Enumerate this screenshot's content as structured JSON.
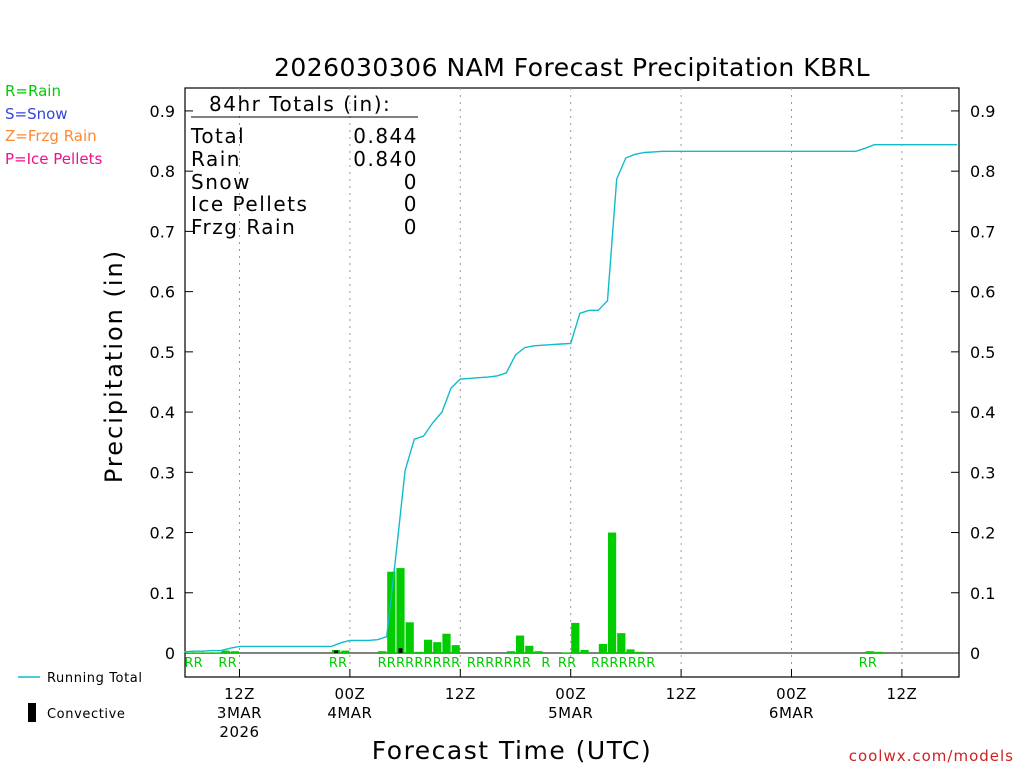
{
  "colors": {
    "rain": "#00cc00",
    "snow": "#3344dd",
    "frzg_rain": "#ff8833",
    "ice_pellets": "#ee1188",
    "running_total": "#11bbcc",
    "convective": "#000000",
    "credit": "#cc2222"
  },
  "precip_legend": {
    "rain": "R=Rain",
    "snow": "S=Snow",
    "frzg_rain": "Z=Frzg Rain",
    "ice_pellets": "P=Ice Pellets"
  },
  "series_legend": {
    "running_total": "Running Total",
    "convective": "Convective"
  },
  "totals_box": {
    "header": "84hr Totals (in):",
    "rows": [
      {
        "label": "Total",
        "value": "0.844"
      },
      {
        "label": "Rain",
        "value": "0.840"
      },
      {
        "label": "Snow",
        "value": "0"
      },
      {
        "label": "Ice Pellets",
        "value": "0"
      },
      {
        "label": "Frzg Rain",
        "value": "0"
      }
    ]
  },
  "credit": "coolwx.com/models",
  "chart_data": {
    "type": "bar",
    "title": "2026030306 NAM Forecast Precipitation KBRL",
    "xlabel": "Forecast Time (UTC)",
    "ylabel": "Precipitation (in)",
    "ylim": [
      0,
      0.95
    ],
    "y_ticks": [
      0,
      0.1,
      0.2,
      0.3,
      0.4,
      0.5,
      0.6,
      0.7,
      0.8,
      0.9
    ],
    "y_tick_labels": [
      "0",
      "0.1",
      "0.2",
      "0.3",
      "0.4",
      "0.5",
      "0.6",
      "0.7",
      "0.8",
      "0.9"
    ],
    "x_units": "forecast hour",
    "xlim": [
      -0.5,
      84
    ],
    "x_ticks": [
      {
        "hour": 6,
        "lines": [
          "12Z",
          "3MAR",
          "2026"
        ]
      },
      {
        "hour": 18,
        "lines": [
          "00Z",
          "4MAR"
        ]
      },
      {
        "hour": 30,
        "lines": [
          "12Z"
        ]
      },
      {
        "hour": 42,
        "lines": [
          "00Z",
          "5MAR"
        ]
      },
      {
        "hour": 54,
        "lines": [
          "12Z"
        ]
      },
      {
        "hour": 66,
        "lines": [
          "00Z",
          "6MAR"
        ]
      },
      {
        "hour": 78,
        "lines": [
          "12Z"
        ]
      }
    ],
    "series": [
      {
        "name": "Hourly precipitation",
        "kind": "bar",
        "x": [
          1,
          2,
          3,
          4,
          5,
          6,
          7,
          8,
          9,
          10,
          11,
          12,
          13,
          14,
          15,
          16,
          17,
          18,
          19,
          20,
          21,
          22,
          23,
          24,
          25,
          26,
          27,
          28,
          29,
          30,
          31,
          32,
          33,
          34,
          35,
          36,
          37,
          38,
          39,
          40,
          41,
          42,
          43,
          44,
          45,
          46,
          47,
          48,
          49,
          50,
          51,
          52,
          53,
          54,
          55,
          56,
          57,
          58,
          59,
          60,
          61,
          62,
          63,
          64,
          65,
          66,
          67,
          68,
          69,
          70,
          71,
          72,
          73,
          74,
          75,
          76,
          77,
          78,
          79,
          80,
          81,
          82,
          83,
          84
        ],
        "values": [
          0.001,
          0.001,
          0.001,
          0.001,
          0.004,
          0.003,
          0,
          0,
          0,
          0,
          0,
          0,
          0,
          0,
          0,
          0,
          0.005,
          0.004,
          0,
          0,
          0,
          0.003,
          0.135,
          0.141,
          0.051,
          0.002,
          0.022,
          0.018,
          0.032,
          0.013,
          0,
          0,
          0,
          0,
          0,
          0.003,
          0.029,
          0.012,
          0.003,
          0,
          0,
          0.001,
          0.05,
          0.005,
          0,
          0.015,
          0.2,
          0.033,
          0.006,
          0.002,
          0,
          0,
          0,
          0,
          0,
          0,
          0,
          0,
          0,
          0,
          0,
          0,
          0,
          0,
          0,
          0,
          0,
          0,
          0,
          0,
          0,
          0,
          0,
          0,
          0.003,
          0.002,
          0,
          0,
          0,
          0,
          0,
          0,
          0,
          0
        ]
      },
      {
        "name": "Convective",
        "kind": "bar",
        "x": [
          17,
          24
        ],
        "values": [
          0.004,
          0.008
        ]
      },
      {
        "name": "Running Total",
        "kind": "line",
        "x": [
          0,
          1,
          2,
          3,
          4,
          5,
          6,
          7,
          8,
          9,
          10,
          11,
          12,
          13,
          14,
          15,
          16,
          17,
          18,
          19,
          20,
          21,
          22,
          23,
          24,
          25,
          26,
          27,
          28,
          29,
          30,
          31,
          32,
          33,
          34,
          35,
          36,
          37,
          38,
          39,
          40,
          41,
          42,
          43,
          44,
          45,
          46,
          47,
          48,
          49,
          50,
          51,
          52,
          53,
          54,
          55,
          56,
          57,
          58,
          59,
          60,
          61,
          62,
          63,
          64,
          65,
          66,
          67,
          68,
          69,
          70,
          71,
          72,
          73,
          74,
          75,
          76,
          77,
          78,
          79,
          80,
          81,
          82,
          83,
          84
        ],
        "values": [
          0.002,
          0.003,
          0.003,
          0.004,
          0.004,
          0.008,
          0.011,
          0.011,
          0.011,
          0.011,
          0.011,
          0.011,
          0.011,
          0.011,
          0.011,
          0.011,
          0.011,
          0.017,
          0.021,
          0.021,
          0.021,
          0.022,
          0.027,
          0.162,
          0.303,
          0.355,
          0.36,
          0.382,
          0.4,
          0.44,
          0.455,
          0.456,
          0.457,
          0.458,
          0.46,
          0.465,
          0.495,
          0.507,
          0.51,
          0.511,
          0.512,
          0.513,
          0.514,
          0.564,
          0.569,
          0.569,
          0.585,
          0.787,
          0.822,
          0.828,
          0.831,
          0.832,
          0.833,
          0.833,
          0.833,
          0.833,
          0.833,
          0.833,
          0.833,
          0.833,
          0.833,
          0.833,
          0.833,
          0.833,
          0.833,
          0.833,
          0.833,
          0.833,
          0.833,
          0.833,
          0.833,
          0.833,
          0.833,
          0.833,
          0.838,
          0.844,
          0.844,
          0.844,
          0.844,
          0.844,
          0.844,
          0.844,
          0.844,
          0.844,
          0.844
        ]
      }
    ],
    "type_markers": [
      {
        "hour": 1,
        "type": "R"
      },
      {
        "hour": 2,
        "type": "R"
      },
      {
        "hour": 4.7,
        "type": "R"
      },
      {
        "hour": 5.7,
        "type": "R"
      },
      {
        "hour": 16.7,
        "type": "R"
      },
      {
        "hour": 17.7,
        "type": "R"
      },
      {
        "hour": 22,
        "type": "R"
      },
      {
        "hour": 23,
        "type": "R"
      },
      {
        "hour": 24,
        "type": "R"
      },
      {
        "hour": 25,
        "type": "R"
      },
      {
        "hour": 26,
        "type": "R"
      },
      {
        "hour": 27,
        "type": "R"
      },
      {
        "hour": 28,
        "type": "R"
      },
      {
        "hour": 29,
        "type": "R"
      },
      {
        "hour": 30,
        "type": "R"
      },
      {
        "hour": 31.7,
        "type": "R"
      },
      {
        "hour": 32.7,
        "type": "R"
      },
      {
        "hour": 33.7,
        "type": "R"
      },
      {
        "hour": 34.7,
        "type": "R"
      },
      {
        "hour": 35.7,
        "type": "R"
      },
      {
        "hour": 36.7,
        "type": "R"
      },
      {
        "hour": 37.7,
        "type": "R"
      },
      {
        "hour": 39.8,
        "type": "R"
      },
      {
        "hour": 41.6,
        "type": "R"
      },
      {
        "hour": 42.6,
        "type": "R"
      },
      {
        "hour": 45.2,
        "type": "R"
      },
      {
        "hour": 46.2,
        "type": "R"
      },
      {
        "hour": 47.2,
        "type": "R"
      },
      {
        "hour": 48.2,
        "type": "R"
      },
      {
        "hour": 49.2,
        "type": "R"
      },
      {
        "hour": 50.2,
        "type": "R"
      },
      {
        "hour": 51.2,
        "type": "R"
      },
      {
        "hour": 74.3,
        "type": "R"
      },
      {
        "hour": 75.3,
        "type": "R"
      }
    ]
  }
}
